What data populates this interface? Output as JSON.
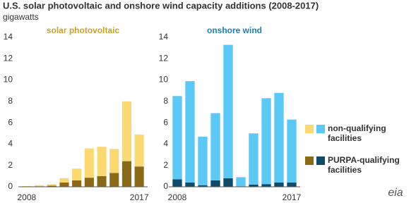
{
  "title": "U.S. solar photovoltaic and onshore wind capacity additions (2008-2017)",
  "subtitle": "gigawatts",
  "logo": "eia",
  "chart_data": [
    {
      "type": "bar",
      "stacked": true,
      "title": "solar photovoltaic",
      "title_color": "#c9a227",
      "categories": [
        "2008",
        null,
        null,
        null,
        null,
        null,
        null,
        null,
        null,
        "2017"
      ],
      "ylim": [
        0,
        14
      ],
      "yticks": [
        0,
        2,
        4,
        6,
        8,
        10,
        12,
        14
      ],
      "series": [
        {
          "color": "#8a6a14",
          "values": [
            0.02,
            0.05,
            0.1,
            0.4,
            0.6,
            0.85,
            1.0,
            1.3,
            2.4,
            1.9
          ]
        },
        {
          "color": "#fcd870",
          "values": [
            0.05,
            0.1,
            0.15,
            0.4,
            1.1,
            2.75,
            2.75,
            2.25,
            5.6,
            3.0
          ]
        }
      ]
    },
    {
      "type": "bar",
      "stacked": true,
      "title": "onshore wind",
      "title_color": "#1c7fb4",
      "categories": [
        "2008",
        null,
        null,
        null,
        null,
        null,
        null,
        null,
        null,
        "2017"
      ],
      "ylim": [
        0,
        14
      ],
      "yticks": [
        0,
        2,
        4,
        6,
        8,
        10,
        12,
        14
      ],
      "series": [
        {
          "name": "PURPA-qualifying facilities",
          "color": "#0f4a68",
          "values": [
            0.7,
            0.4,
            0.15,
            0.6,
            0.8,
            0.02,
            0.2,
            0.25,
            0.4,
            0.4
          ]
        },
        {
          "name": "non-qualifying facilities",
          "color": "#5cc8f5",
          "values": [
            7.8,
            9.5,
            4.55,
            6.3,
            12.5,
            0.88,
            4.8,
            8.05,
            8.4,
            5.9
          ]
        }
      ]
    }
  ]
}
